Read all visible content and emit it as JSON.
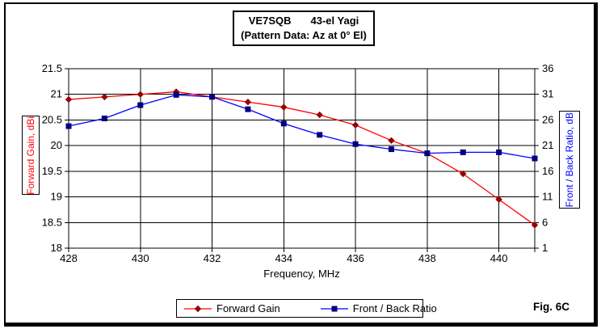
{
  "title": {
    "line1_left": "VE7SQB",
    "line1_right": "43-el Yagi",
    "line2": "(Pattern Data: Az at 0° El)"
  },
  "figure_label": "Fig. 6C",
  "chart_data": {
    "type": "line",
    "x": [
      428,
      429,
      430,
      431,
      432,
      433,
      434,
      435,
      436,
      437,
      438,
      439,
      440,
      441
    ],
    "xlabel": "Frequency, MHz",
    "xlim": [
      428,
      441
    ],
    "x_tick_labels": [
      428,
      430,
      432,
      434,
      436,
      438,
      440
    ],
    "grid": true,
    "legend_position": "bottom",
    "axes": {
      "left": {
        "label": "Forward Gain, dBi",
        "min": 18,
        "max": 21.5,
        "step": 0.5,
        "color": "#ff0000",
        "tick_labels": [
          21.5,
          21,
          20.5,
          20,
          19.5,
          19,
          18.5,
          18
        ]
      },
      "right": {
        "label": "Front / Back Ratio, dB",
        "min": 1,
        "max": 36,
        "step": 5,
        "color": "#0000ff",
        "tick_labels": [
          36,
          31,
          26,
          21,
          16,
          11,
          6,
          1
        ]
      }
    },
    "series": [
      {
        "name": "Forward Gain",
        "axis": "left",
        "color": "#ff0000",
        "marker": "diamond",
        "marker_color": "#990000",
        "values": [
          20.9,
          20.95,
          21.0,
          21.05,
          20.95,
          20.85,
          20.75,
          20.6,
          20.4,
          20.1,
          19.85,
          19.45,
          18.95,
          18.45
        ]
      },
      {
        "name": "Front / Back Ratio",
        "axis": "right",
        "color": "#0000ff",
        "marker": "square",
        "marker_color": "#000080",
        "values": [
          24.8,
          26.3,
          28.9,
          30.9,
          30.5,
          28.1,
          25.3,
          23.1,
          21.3,
          20.3,
          19.5,
          19.7,
          19.7,
          18.5
        ]
      }
    ]
  }
}
